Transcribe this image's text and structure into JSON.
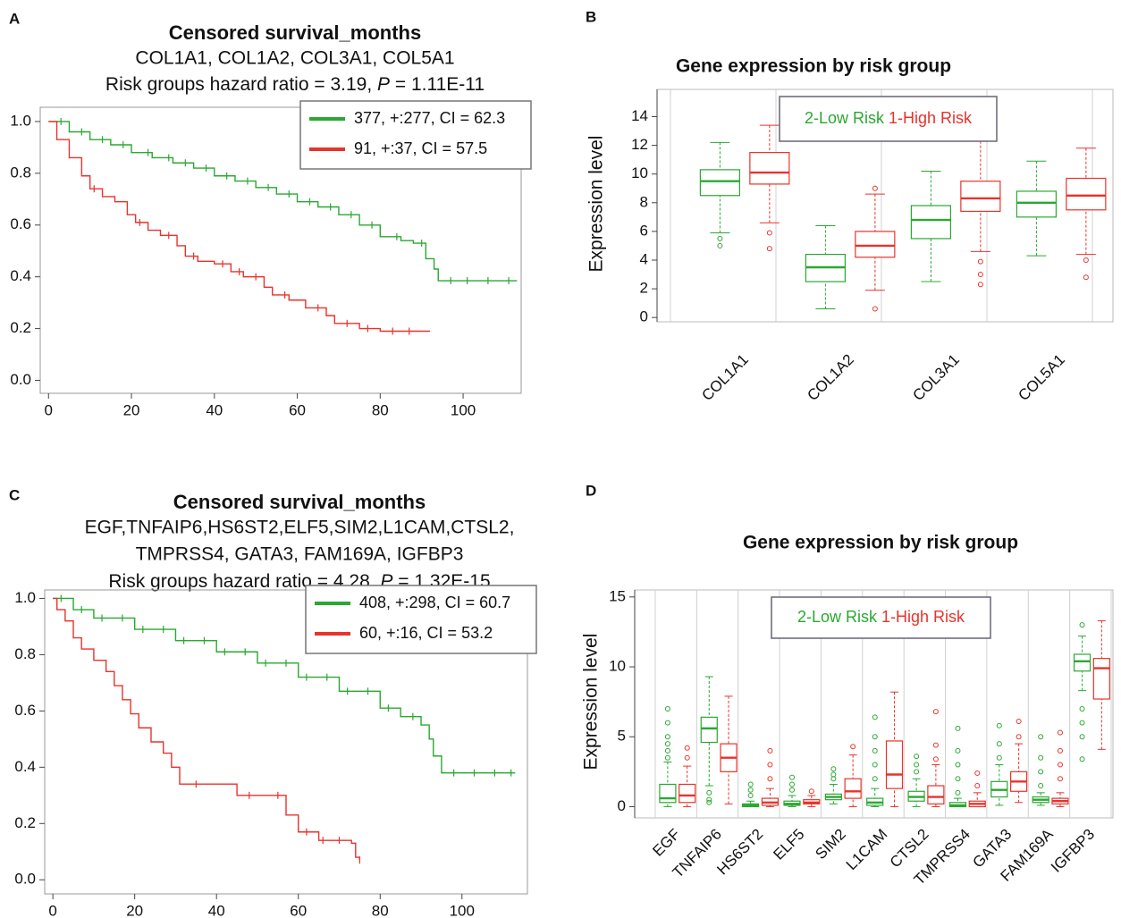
{
  "chart_data": [
    {
      "type": "km",
      "panel": "A",
      "title": "Censored survival_months",
      "subtitle": [
        "COL1A1, COL1A2, COL3A1, COL5A1"
      ],
      "hazard_text": "Risk groups hazard ratio = 3.19, ",
      "p_symbol": "P",
      "p_text": " = 1.11E-11",
      "xlim": [
        -2,
        114
      ],
      "ylim": [
        -0.05,
        1.055
      ],
      "xticks": [
        0,
        20,
        40,
        60,
        80,
        100
      ],
      "yticks": [
        {
          "value": 0,
          "label": "0.0"
        },
        0.2,
        0.4,
        0.6,
        0.8,
        {
          "value": 1,
          "label": "1.0"
        }
      ],
      "legend": "upper right",
      "series": [
        {
          "name": "377, +:277, CI = 62.3",
          "color": "#2aa831",
          "x": [
            0,
            5,
            10,
            15,
            20,
            25,
            30,
            35,
            40,
            45,
            50,
            55,
            60,
            65,
            70,
            75,
            80,
            85,
            88,
            91,
            93,
            94,
            113
          ],
          "values": [
            1,
            0.96,
            0.93,
            0.91,
            0.88,
            0.86,
            0.84,
            0.82,
            0.79,
            0.77,
            0.745,
            0.72,
            0.69,
            0.67,
            0.64,
            0.6,
            0.555,
            0.54,
            0.53,
            0.47,
            0.43,
            0.385,
            0.385
          ],
          "censored": [
            3,
            8,
            13,
            18,
            24,
            29,
            33,
            38,
            43,
            48,
            53,
            58,
            63,
            68,
            73,
            78,
            84,
            90,
            97,
            101,
            106,
            111
          ]
        },
        {
          "name": "91, +:37, CI = 57.5",
          "color": "#e8332b",
          "x": [
            0,
            2,
            5,
            8,
            10,
            13,
            16,
            19,
            21,
            24,
            27,
            31,
            33,
            36,
            40,
            44,
            47,
            52,
            54,
            58,
            62,
            67,
            69,
            75,
            80,
            92
          ],
          "values": [
            1,
            0.93,
            0.86,
            0.79,
            0.74,
            0.71,
            0.69,
            0.64,
            0.61,
            0.58,
            0.56,
            0.52,
            0.48,
            0.46,
            0.45,
            0.42,
            0.4,
            0.36,
            0.33,
            0.31,
            0.28,
            0.25,
            0.22,
            0.2,
            0.19,
            0.19
          ],
          "censored": [
            11,
            22,
            29,
            35,
            42,
            46,
            50,
            57,
            65,
            72,
            77,
            83,
            87
          ]
        }
      ]
    },
    {
      "type": "box",
      "panel": "B",
      "title": "Gene expression by risk group",
      "ylabel": "Expression level",
      "categories": [
        "COL1A1",
        "COL1A2",
        "COL3A1",
        "COL5A1"
      ],
      "ylim": [
        -0.3,
        15.9
      ],
      "yticks": [
        0,
        2,
        4,
        6,
        8,
        10,
        12,
        14
      ],
      "series": [
        {
          "name": "2-Low Risk",
          "color": "#2aa831",
          "min": [
            5.9,
            0.6,
            2.5,
            4.3
          ],
          "q1": [
            8.5,
            2.5,
            5.5,
            7.0
          ],
          "median": [
            9.5,
            3.5,
            6.8,
            8.0
          ],
          "q3": [
            10.3,
            4.4,
            7.8,
            8.8
          ],
          "max": [
            12.2,
            6.4,
            10.2,
            10.9
          ],
          "outliers": [
            [
              5.5,
              5.0
            ],
            [],
            [],
            []
          ]
        },
        {
          "name": "1-High Risk",
          "color": "#e8332b",
          "min": [
            6.6,
            1.9,
            4.6,
            4.4
          ],
          "q1": [
            9.3,
            4.2,
            7.4,
            7.5
          ],
          "median": [
            10.1,
            5.0,
            8.3,
            8.5
          ],
          "q3": [
            11.5,
            6.0,
            9.5,
            9.7
          ],
          "max": [
            13.4,
            8.6,
            12.3,
            11.8
          ],
          "outliers": [
            [
              5.9,
              4.8
            ],
            [
              9.0,
              0.6
            ],
            [
              3.9,
              3.0,
              2.3
            ],
            [
              4.0,
              2.8
            ]
          ]
        }
      ]
    },
    {
      "type": "km",
      "panel": "C",
      "title": "Censored survival_months",
      "subtitle": [
        "EGF,TNFAIP6,HS6ST2,ELF5,SIM2,L1CAM,CTSL2,",
        "TMPRSS4, GATA3, FAM169A, IGFBP3"
      ],
      "hazard_text": "Risk groups hazard ratio = 4.28, ",
      "p_symbol": "P",
      "p_text": " = 1.32E-15",
      "xlim": [
        -2,
        116
      ],
      "ylim": [
        -0.05,
        1.03
      ],
      "xticks": [
        0,
        20,
        40,
        60,
        80,
        100
      ],
      "yticks": [
        {
          "value": 0,
          "label": "0.0"
        },
        0.2,
        0.4,
        0.6,
        0.8,
        {
          "value": 1,
          "label": "1.0"
        }
      ],
      "legend": "upper right",
      "series": [
        {
          "name": "408, +:298, CI = 60.7",
          "color": "#2aa831",
          "x": [
            0,
            5,
            10,
            20,
            30,
            40,
            50,
            60,
            70,
            80,
            85,
            90,
            92,
            93,
            95,
            113
          ],
          "values": [
            1,
            0.96,
            0.93,
            0.89,
            0.85,
            0.81,
            0.77,
            0.72,
            0.67,
            0.61,
            0.58,
            0.55,
            0.5,
            0.44,
            0.38,
            0.38
          ],
          "censored": [
            2,
            7,
            12,
            17,
            22,
            27,
            32,
            37,
            42,
            47,
            52,
            57,
            62,
            67,
            72,
            77,
            82,
            88,
            98,
            103,
            108,
            112
          ]
        },
        {
          "name": "60, +:16, CI = 53.2",
          "color": "#e8332b",
          "x": [
            0,
            1,
            3,
            5,
            7,
            10,
            13,
            15,
            17,
            19,
            21,
            24,
            27,
            29,
            31,
            40,
            45,
            52,
            57,
            60,
            65,
            73,
            74,
            75
          ],
          "values": [
            1,
            0.96,
            0.92,
            0.86,
            0.82,
            0.78,
            0.74,
            0.69,
            0.64,
            0.59,
            0.54,
            0.49,
            0.45,
            0.4,
            0.34,
            0.34,
            0.3,
            0.3,
            0.23,
            0.17,
            0.14,
            0.13,
            0.08,
            0.07
          ],
          "censored": [
            35,
            48,
            55,
            62,
            66,
            70,
            75
          ]
        }
      ]
    },
    {
      "type": "box",
      "panel": "D",
      "title": "Gene expression by risk group",
      "ylabel": "Expression level",
      "categories": [
        "EGF",
        "TNFAIP6",
        "HS6ST2",
        "ELF5",
        "SIM2",
        "L1CAM",
        "CTSL2",
        "TMPRSS4",
        "GATA3",
        "FAM169A",
        "IGFBP3"
      ],
      "ylim": [
        -0.8,
        15.5
      ],
      "yticks": [
        0,
        5,
        10,
        15
      ],
      "series": [
        {
          "name": "2-Low Risk",
          "color": "#2aa831",
          "min": [
            0,
            1.5,
            0,
            0,
            0.2,
            0,
            0,
            0,
            0.1,
            0.1,
            8.3
          ],
          "q1": [
            0.3,
            4.6,
            0,
            0.1,
            0.5,
            0.1,
            0.4,
            0,
            0.7,
            0.3,
            9.7
          ],
          "median": [
            0.6,
            5.6,
            0.1,
            0.2,
            0.7,
            0.3,
            0.7,
            0.1,
            1.2,
            0.5,
            10.4
          ],
          "q3": [
            1.6,
            6.4,
            0.2,
            0.4,
            0.9,
            0.6,
            1.1,
            0.3,
            1.8,
            0.7,
            10.9
          ],
          "max": [
            3.2,
            9.3,
            0.4,
            0.8,
            1.6,
            1.3,
            2.0,
            0.6,
            3.0,
            1.0,
            12.2
          ],
          "outliers": [
            [
              3.5,
              4,
              4.5,
              5,
              6,
              7
            ],
            [
              1.0,
              0.5,
              0.3
            ],
            [
              0.8,
              1.2,
              1.6
            ],
            [
              1.2,
              1.6,
              2.1
            ],
            [
              2,
              2.3,
              2.7
            ],
            [
              2,
              3,
              4,
              5,
              6.4
            ],
            [
              2.5,
              3,
              3.6
            ],
            [
              1,
              2,
              3,
              4,
              5.6
            ],
            [
              3.5,
              4.5,
              5.8
            ],
            [
              1.5,
              2.5,
              3.5,
              5.0
            ],
            [
              7,
              6,
              5,
              3.4,
              13
            ]
          ]
        },
        {
          "name": "1-High Risk",
          "color": "#e8332b",
          "min": [
            0,
            0.2,
            0,
            0,
            0,
            0,
            0,
            0,
            0.3,
            0,
            4.1
          ],
          "q1": [
            0.3,
            2.5,
            0.1,
            0.2,
            0.6,
            1.3,
            0.2,
            0,
            1.1,
            0.2,
            7.7
          ],
          "median": [
            0.8,
            3.5,
            0.3,
            0.3,
            1.1,
            2.3,
            0.7,
            0.2,
            1.8,
            0.4,
            9.9
          ],
          "q3": [
            1.6,
            4.5,
            0.6,
            0.5,
            2.0,
            4.7,
            1.5,
            0.4,
            2.5,
            0.6,
            10.6
          ],
          "max": [
            2.9,
            7.9,
            1.3,
            0.8,
            3.7,
            8.2,
            3.0,
            1.0,
            4.5,
            1.0,
            13.3
          ],
          "outliers": [
            [
              3.5,
              4.2
            ],
            [],
            [
              2,
              3,
              4
            ],
            [
              1.1
            ],
            [
              4.3
            ],
            [],
            [
              3.4,
              4.4,
              6.8
            ],
            [
              1.5,
              2.4
            ],
            [
              5,
              6.1
            ],
            [
              2,
              3,
              4,
              5.3
            ],
            []
          ]
        }
      ]
    }
  ]
}
